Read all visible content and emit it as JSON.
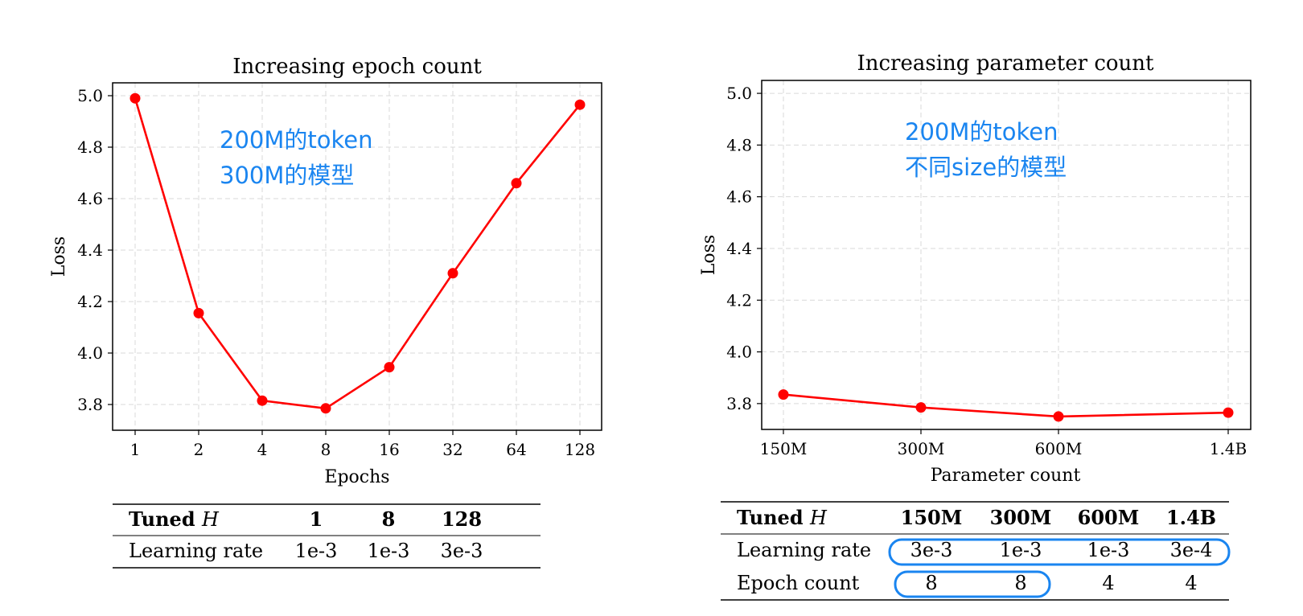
{
  "colors": {
    "line": "#ff0000",
    "annotation": "#1a85f0",
    "grid": "#d9d9d9",
    "highlight": "#1a85f0"
  },
  "chart_data": [
    {
      "type": "line",
      "title": "Increasing epoch count",
      "xlabel": "Epochs",
      "ylabel": "Loss",
      "categories": [
        "1",
        "2",
        "4",
        "8",
        "16",
        "32",
        "64",
        "128"
      ],
      "values": [
        4.99,
        4.155,
        3.815,
        3.785,
        3.945,
        4.31,
        4.66,
        4.965
      ],
      "ylim": [
        3.7,
        5.05
      ],
      "yticks": [
        "3.8",
        "4.0",
        "4.2",
        "4.4",
        "4.6",
        "4.8",
        "5.0"
      ],
      "grid": true,
      "annotation": [
        "200M的token",
        "300M的模型"
      ]
    },
    {
      "type": "line",
      "title": "Increasing parameter count",
      "xlabel": "Parameter count",
      "ylabel": "Loss",
      "categories": [
        "150M",
        "300M",
        "600M",
        "1.4B"
      ],
      "x": [
        0,
        1,
        2,
        3.2
      ],
      "values": [
        3.835,
        3.785,
        3.75,
        3.765
      ],
      "ylim": [
        3.7,
        5.05
      ],
      "yticks": [
        "3.8",
        "4.0",
        "4.2",
        "4.4",
        "4.6",
        "4.8",
        "5.0"
      ],
      "grid": true,
      "annotation": [
        "200M的token",
        "不同size的模型"
      ]
    }
  ],
  "tables": [
    {
      "header_bold": "Tuned",
      "header_italic": "H",
      "columns": [
        "1",
        "8",
        "128"
      ],
      "rows": [
        {
          "label": "Learning rate",
          "cells": [
            "1e-3",
            "1e-3",
            "3e-3"
          ]
        }
      ]
    },
    {
      "header_bold": "Tuned",
      "header_italic": "H",
      "columns": [
        "150M",
        "300M",
        "600M",
        "1.4B"
      ],
      "rows": [
        {
          "label": "Learning rate",
          "cells": [
            "3e-3",
            "1e-3",
            "1e-3",
            "3e-4"
          ]
        },
        {
          "label": "Epoch count",
          "cells": [
            "8",
            "8",
            "4",
            "4"
          ]
        }
      ]
    }
  ]
}
